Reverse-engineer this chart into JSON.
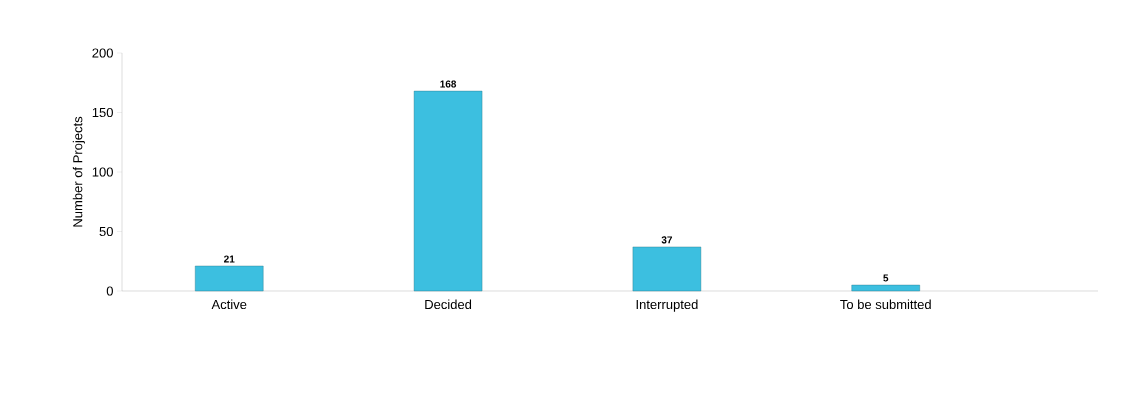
{
  "chart_data": {
    "type": "bar",
    "ylabel": "Number of Projects",
    "categories": [
      "Active",
      "Decided",
      "Interrupted",
      "To be submitted"
    ],
    "values": [
      21,
      168,
      37,
      5
    ],
    "color": "#3cbfe0",
    "ylim": [
      0,
      200
    ],
    "yticks": [
      0,
      50,
      100,
      150,
      200
    ],
    "grid": false,
    "data_labels": true
  }
}
